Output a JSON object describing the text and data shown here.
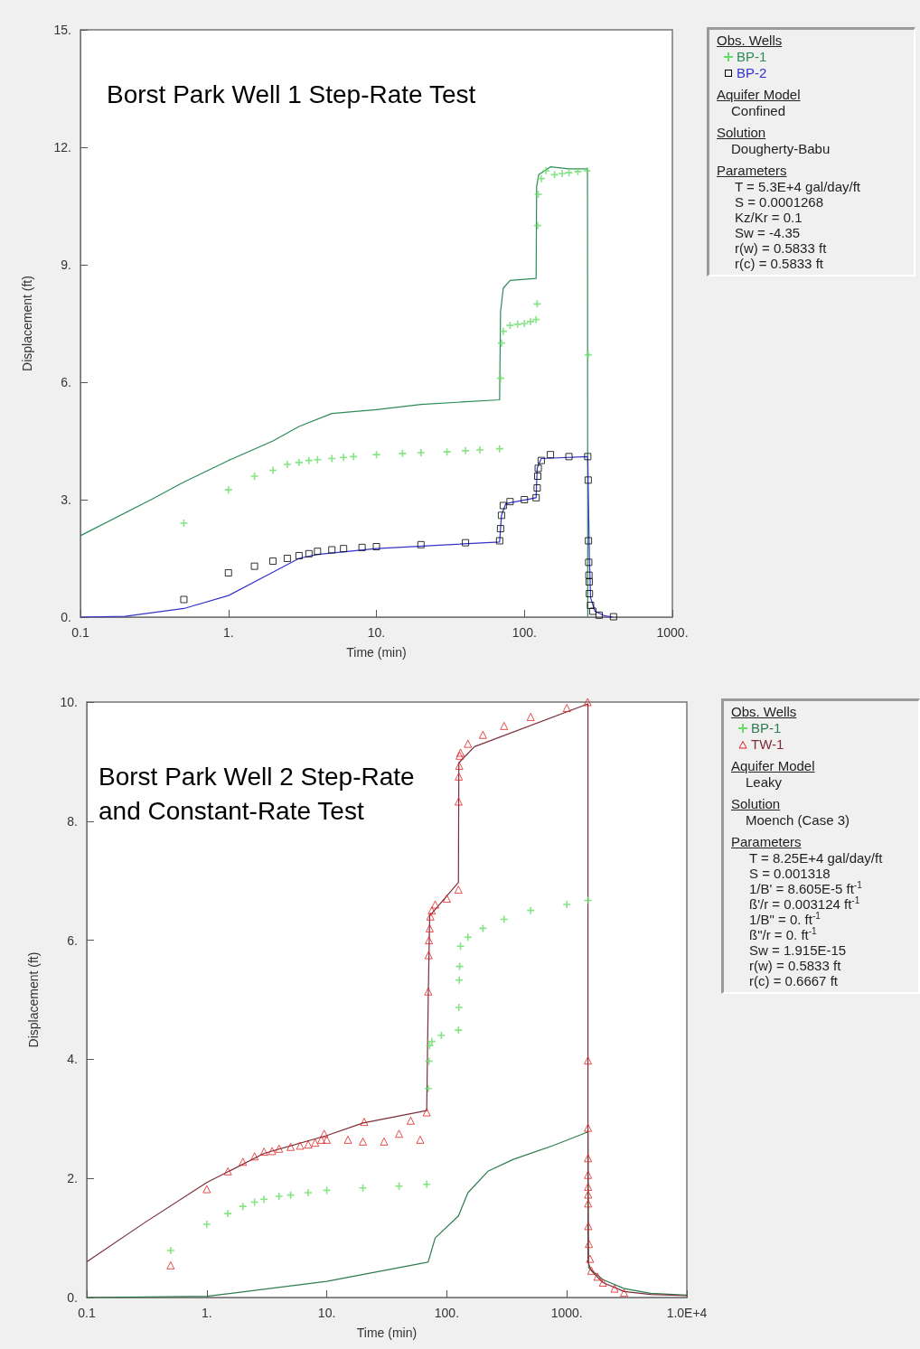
{
  "chart_data": [
    {
      "type": "scatter",
      "title": "Borst Park Well 1 Step-Rate Test",
      "xlabel": "Time (min)",
      "ylabel": "Displacement (ft)",
      "log": "x",
      "grid": false,
      "legend": "right",
      "legend_title": "Obs. Wells",
      "xlim": [
        0.1,
        1000
      ],
      "xticks": [
        0.1,
        {
          "value": 1,
          "label": "1."
        },
        {
          "value": 10,
          "label": "10."
        },
        {
          "value": 100,
          "label": "100."
        },
        {
          "value": 1000,
          "label": "1000."
        }
      ],
      "ylim": [
        0,
        15
      ],
      "yticks": [
        {
          "value": 0,
          "label": "0."
        },
        {
          "value": 3,
          "label": "3."
        },
        {
          "value": 6,
          "label": "6."
        },
        {
          "value": 9,
          "label": "9."
        },
        {
          "value": 12,
          "label": "12."
        },
        {
          "value": 15,
          "label": "15."
        }
      ],
      "annotations": [
        "Aquifer Model",
        "Confined",
        "Solution",
        "Dougherty-Babu",
        "Parameters",
        "T = 5.3E+4 gal/day/ft",
        "S = 0.0001268",
        "Kz/Kr = 0.1",
        "Sw = -4.35",
        "r(w) = 0.5833 ft",
        "r(c) = 0.5833 ft"
      ],
      "series": [
        {
          "name": "BP-1",
          "marker": "cross",
          "color": "#66dd66",
          "x": [
            0.5,
            1,
            1.5,
            2,
            2.5,
            3,
            3.5,
            4,
            5,
            6,
            7,
            10,
            15,
            20,
            30,
            40,
            50,
            68,
            69,
            70,
            72,
            80,
            90,
            100,
            110,
            120,
            122,
            123,
            124,
            130,
            140,
            160,
            180,
            200,
            230,
            265,
            270
          ],
          "values": [
            2.4,
            3.25,
            3.6,
            3.75,
            3.9,
            3.95,
            4.0,
            4.02,
            4.05,
            4.08,
            4.1,
            4.15,
            4.18,
            4.2,
            4.22,
            4.25,
            4.27,
            4.3,
            6.1,
            7.0,
            7.3,
            7.45,
            7.48,
            7.5,
            7.55,
            7.6,
            8.0,
            10.0,
            10.8,
            11.2,
            11.4,
            11.3,
            11.33,
            11.35,
            11.38,
            11.4,
            6.7
          ]
        },
        {
          "type": "line",
          "marker": "none",
          "line_style": "solid",
          "color": "#2e8b57",
          "x": [
            0.1,
            0.3,
            0.5,
            1,
            2,
            3,
            5,
            10,
            20,
            40,
            68,
            69,
            72,
            80,
            120,
            121,
            125,
            150,
            200,
            267,
            268
          ],
          "values": [
            2.08,
            3.0,
            3.45,
            4.0,
            4.5,
            4.87,
            5.2,
            5.3,
            5.43,
            5.5,
            5.55,
            7.8,
            8.4,
            8.6,
            8.65,
            11.0,
            11.3,
            11.5,
            11.45,
            11.45,
            0
          ]
        },
        {
          "name": "BP-2",
          "marker": "square",
          "color": "#000000",
          "x": [
            0.5,
            1,
            1.5,
            2,
            2.5,
            3,
            3.5,
            4,
            5,
            6,
            8,
            10,
            20,
            40,
            68,
            69,
            70,
            72,
            80,
            100,
            120,
            122,
            123,
            124,
            130,
            150,
            200,
            268,
            270,
            271,
            272,
            273,
            274,
            275,
            280,
            290,
            320,
            400
          ],
          "values": [
            0.45,
            1.13,
            1.3,
            1.43,
            1.5,
            1.57,
            1.62,
            1.68,
            1.72,
            1.75,
            1.78,
            1.8,
            1.85,
            1.9,
            1.95,
            2.26,
            2.6,
            2.85,
            2.95,
            3.0,
            3.05,
            3.3,
            3.6,
            3.8,
            4.0,
            4.15,
            4.1,
            4.1,
            3.5,
            1.95,
            1.4,
            1.07,
            0.9,
            0.6,
            0.3,
            0.15,
            0.05,
            0.01
          ]
        },
        {
          "type": "line",
          "marker": "none",
          "line_style": "solid",
          "color": "#3333cc",
          "x": [
            0.1,
            0.2,
            0.5,
            1,
            2,
            3,
            4,
            10,
            68,
            70,
            75,
            120,
            122,
            130,
            268,
            275,
            280,
            300,
            350,
            400
          ],
          "values": [
            0,
            0.02,
            0.22,
            0.55,
            1.15,
            1.5,
            1.6,
            1.75,
            1.92,
            2.6,
            2.9,
            3.05,
            3.8,
            4.05,
            4.1,
            1.5,
            0.5,
            0.15,
            0.03,
            0
          ]
        }
      ]
    },
    {
      "type": "scatter",
      "title": "Borst Park Well 2 Step-Rate and Constant-Rate Test",
      "xlabel": "Time (min)",
      "ylabel": "Displacement (ft)",
      "log": "x",
      "grid": false,
      "legend": "right",
      "legend_title": "Obs. Wells",
      "xlim": [
        0.1,
        10000
      ],
      "xticks": [
        0.1,
        {
          "value": 1,
          "label": "1."
        },
        {
          "value": 10,
          "label": "10."
        },
        {
          "value": 100,
          "label": "100."
        },
        {
          "value": 1000,
          "label": "1000."
        },
        {
          "value": 10000,
          "label": "1.0E+4"
        }
      ],
      "ylim": [
        0,
        10
      ],
      "yticks": [
        {
          "value": 0,
          "label": "0."
        },
        {
          "value": 2,
          "label": "2."
        },
        {
          "value": 4,
          "label": "4."
        },
        {
          "value": 6,
          "label": "6."
        },
        {
          "value": 8,
          "label": "8."
        },
        {
          "value": 10,
          "label": "10."
        }
      ],
      "annotations": [
        "Aquifer Model",
        "Leaky",
        "Solution",
        "Moench (Case 3)",
        "Parameters",
        "T = 8.25E+4 gal/day/ft",
        "S = 0.001318",
        "1/B' = 8.605E-5 ft$^{-1}$",
        "ß'/r = 0.003124 ft$^{-1}$",
        "1/B\" = 0. ft$^{-1}$",
        "ß\"/r = 0. ft$^{-1}$",
        "Sw = 1.915E-15",
        "r(w) = 0.5833 ft",
        "r(c) = 0.6667 ft"
      ],
      "series": [
        {
          "name": "BP-1",
          "marker": "cross",
          "color": "#66dd66",
          "x": [
            0.5,
            1,
            1.5,
            2,
            2.5,
            3,
            4,
            5,
            7,
            10,
            20,
            40,
            68,
            70,
            71,
            72,
            75,
            90,
            125,
            126,
            127,
            128,
            130,
            150,
            200,
            300,
            500,
            1000,
            1500
          ],
          "values": [
            0.79,
            1.23,
            1.41,
            1.53,
            1.6,
            1.65,
            1.7,
            1.72,
            1.76,
            1.8,
            1.84,
            1.87,
            1.9,
            3.51,
            3.97,
            4.23,
            4.3,
            4.4,
            4.49,
            4.87,
            5.33,
            5.56,
            5.9,
            6.05,
            6.2,
            6.35,
            6.5,
            6.6,
            6.67
          ]
        },
        {
          "type": "line",
          "marker": "none",
          "line_style": "solid",
          "color": "#2e7d4f",
          "x": [
            0.1,
            1,
            10,
            68,
            70,
            80,
            125,
            150,
            220,
            358,
            764,
            1500,
            1520,
            2000,
            3000,
            5000,
            10000
          ],
          "values": [
            0,
            0.02,
            0.27,
            0.59,
            0.6,
            1.0,
            1.37,
            1.76,
            2.12,
            2.32,
            2.55,
            2.78,
            0.5,
            0.3,
            0.15,
            0.07,
            0.04
          ]
        },
        {
          "name": "TW-1",
          "marker": "triangle",
          "color": "#e02020",
          "x": [
            0.5,
            1,
            1.5,
            2,
            2.5,
            3,
            3.5,
            4,
            5,
            6,
            7,
            8,
            9,
            9.5,
            10,
            15,
            20,
            20.5,
            30,
            40,
            50,
            60,
            68,
            70,
            70.5,
            71,
            72,
            73,
            75,
            80,
            100,
            125,
            125.5,
            126,
            127,
            128,
            130,
            150,
            200,
            300,
            500,
            1000,
            1490,
            1500,
            1501,
            1502,
            1503,
            1504,
            1505,
            1506,
            1510,
            1530,
            1560,
            1600,
            1800,
            2000,
            2500,
            3000
          ],
          "values": [
            0.54,
            1.82,
            2.12,
            2.28,
            2.37,
            2.45,
            2.46,
            2.5,
            2.53,
            2.55,
            2.57,
            2.6,
            2.65,
            2.75,
            2.65,
            2.65,
            2.62,
            2.95,
            2.62,
            2.75,
            2.97,
            2.65,
            3.11,
            5.14,
            5.75,
            6.0,
            6.2,
            6.4,
            6.5,
            6.6,
            6.7,
            6.85,
            8.33,
            8.75,
            8.93,
            9.1,
            9.15,
            9.3,
            9.45,
            9.6,
            9.75,
            9.9,
            10.0,
            3.98,
            2.85,
            2.34,
            2.06,
            1.86,
            1.73,
            1.58,
            1.2,
            0.9,
            0.65,
            0.45,
            0.35,
            0.25,
            0.15,
            0.08
          ]
        },
        {
          "type": "line",
          "marker": "none",
          "line_style": "solid",
          "color": "#7b2d3b",
          "x": [
            0.1,
            0.3,
            1,
            3,
            10,
            20,
            68,
            70,
            72,
            125,
            126,
            170,
            1500,
            1500,
            1600,
            2000,
            3000,
            5000,
            10000
          ],
          "values": [
            0.6,
            1.25,
            1.93,
            2.42,
            2.72,
            2.93,
            3.14,
            5.0,
            6.41,
            6.97,
            8.98,
            9.25,
            9.97,
            0.6,
            0.45,
            0.25,
            0.1,
            0.05,
            0.03
          ]
        }
      ]
    }
  ]
}
